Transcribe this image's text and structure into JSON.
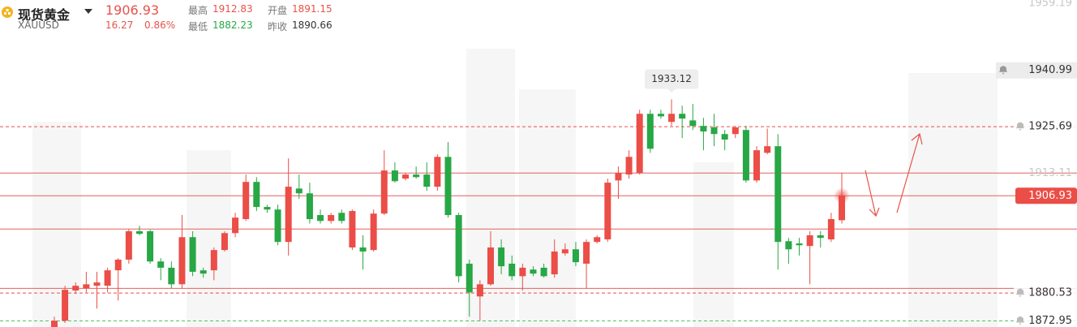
{
  "header": {
    "title": "现货黄金",
    "symbol": "XAUUSD",
    "price": "1906.93",
    "change": "16.27",
    "change_pct": "0.86%",
    "stats": [
      {
        "label": "最高",
        "value": "1912.83"
      },
      {
        "label": "开盘",
        "value": "1891.15"
      },
      {
        "label": "最低",
        "value": "1882.23"
      },
      {
        "label": "昨收",
        "value": "1890.66"
      }
    ]
  },
  "chart_data": {
    "type": "candlestick",
    "up_color": "#eb4d47",
    "down_color": "#27a745",
    "ylim": [
      1871.3,
      1960.1
    ],
    "ohlc": [
      [
        1871.3,
        1874.1,
        1871.3,
        1873.0
      ],
      [
        1873.0,
        1882.5,
        1872.4,
        1881.4
      ],
      [
        1881.2,
        1883.4,
        1880.3,
        1882.5
      ],
      [
        1881.8,
        1886.3,
        1880.7,
        1882.9
      ],
      [
        1882.5,
        1886.3,
        1876.3,
        1883.4
      ],
      [
        1882.5,
        1887.4,
        1880.7,
        1886.7
      ],
      [
        1886.7,
        1890.0,
        1878.5,
        1889.6
      ],
      [
        1889.6,
        1897.9,
        1888.5,
        1897.3
      ],
      [
        1897.3,
        1898.8,
        1896.2,
        1896.6
      ],
      [
        1897.3,
        1897.7,
        1888.5,
        1889.1
      ],
      [
        1889.1,
        1890.0,
        1884.0,
        1887.4
      ],
      [
        1887.4,
        1889.1,
        1881.8,
        1882.9
      ],
      [
        1882.9,
        1901.7,
        1881.8,
        1895.7
      ],
      [
        1895.7,
        1897.3,
        1885.1,
        1886.3
      ],
      [
        1886.7,
        1887.4,
        1884.7,
        1885.8
      ],
      [
        1886.7,
        1892.9,
        1884.0,
        1892.2
      ],
      [
        1892.2,
        1897.3,
        1891.8,
        1896.8
      ],
      [
        1896.8,
        1902.3,
        1895.7,
        1901.0
      ],
      [
        1900.6,
        1912.7,
        1900.1,
        1910.7
      ],
      [
        1910.7,
        1912.0,
        1902.8,
        1903.9
      ],
      [
        1903.9,
        1904.5,
        1902.3,
        1903.2
      ],
      [
        1903.2,
        1904.5,
        1893.5,
        1894.4
      ],
      [
        1894.4,
        1917.1,
        1890.7,
        1909.4
      ],
      [
        1908.9,
        1912.7,
        1906.1,
        1907.6
      ],
      [
        1907.6,
        1910.5,
        1899.4,
        1900.6
      ],
      [
        1901.7,
        1903.2,
        1899.4,
        1900.1
      ],
      [
        1900.1,
        1902.3,
        1899.4,
        1901.7
      ],
      [
        1902.3,
        1903.2,
        1899.4,
        1900.1
      ],
      [
        1892.9,
        1903.2,
        1892.2,
        1902.8
      ],
      [
        1892.9,
        1896.2,
        1886.9,
        1891.8
      ],
      [
        1892.2,
        1903.2,
        1891.8,
        1902.1
      ],
      [
        1902.1,
        1919.3,
        1901.7,
        1913.8
      ],
      [
        1913.8,
        1916.0,
        1910.5,
        1910.9
      ],
      [
        1911.6,
        1913.1,
        1911.1,
        1912.7
      ],
      [
        1912.7,
        1914.9,
        1911.6,
        1912.0
      ],
      [
        1912.7,
        1916.0,
        1908.3,
        1909.4
      ],
      [
        1909.4,
        1918.2,
        1908.3,
        1917.5
      ],
      [
        1917.5,
        1921.5,
        1901.0,
        1901.7
      ],
      [
        1901.7,
        1902.3,
        1883.4,
        1885.1
      ],
      [
        1888.5,
        1889.6,
        1874.1,
        1880.7
      ],
      [
        1879.6,
        1884.0,
        1873.0,
        1882.9
      ],
      [
        1882.9,
        1897.3,
        1882.5,
        1892.9
      ],
      [
        1892.9,
        1895.1,
        1885.6,
        1887.8
      ],
      [
        1888.5,
        1890.7,
        1884.0,
        1885.1
      ],
      [
        1885.1,
        1888.5,
        1881.2,
        1887.4
      ],
      [
        1886.9,
        1887.8,
        1885.1,
        1885.8
      ],
      [
        1887.4,
        1888.5,
        1884.7,
        1885.1
      ],
      [
        1885.6,
        1895.1,
        1884.7,
        1891.8
      ],
      [
        1891.3,
        1894.0,
        1890.7,
        1892.4
      ],
      [
        1892.4,
        1894.4,
        1887.8,
        1888.9
      ],
      [
        1888.5,
        1895.1,
        1881.8,
        1894.4
      ],
      [
        1894.4,
        1896.2,
        1894.0,
        1895.7
      ],
      [
        1895.1,
        1911.6,
        1894.4,
        1910.5
      ],
      [
        1911.1,
        1914.9,
        1906.1,
        1913.1
      ],
      [
        1912.7,
        1919.3,
        1911.6,
        1917.5
      ],
      [
        1913.1,
        1930.3,
        1912.7,
        1929.2
      ],
      [
        1929.2,
        1930.3,
        1918.6,
        1919.7
      ],
      [
        1929.2,
        1930.3,
        1927.9,
        1928.5
      ],
      [
        1927.0,
        1933.12,
        1925.9,
        1929.2
      ],
      [
        1929.2,
        1931.4,
        1922.6,
        1927.9
      ],
      [
        1927.4,
        1931.9,
        1924.8,
        1925.9
      ],
      [
        1925.9,
        1928.1,
        1919.3,
        1924.4
      ],
      [
        1925.5,
        1929.2,
        1920.4,
        1923.7
      ],
      [
        1923.7,
        1924.8,
        1919.3,
        1922.2
      ],
      [
        1923.7,
        1925.9,
        1922.6,
        1925.5
      ],
      [
        1924.8,
        1925.9,
        1910.5,
        1911.1
      ],
      [
        1911.1,
        1920.4,
        1910.5,
        1919.3
      ],
      [
        1918.6,
        1925.2,
        1918.2,
        1920.4
      ],
      [
        1920.4,
        1923.7,
        1886.9,
        1894.4
      ],
      [
        1894.6,
        1895.5,
        1888.5,
        1892.4
      ],
      [
        1894.0,
        1895.5,
        1890.7,
        1893.5
      ],
      [
        1893.3,
        1897.3,
        1882.9,
        1896.2
      ],
      [
        1896.2,
        1897.3,
        1892.9,
        1895.5
      ],
      [
        1895.1,
        1902.3,
        1894.4,
        1900.6
      ],
      [
        1900.3,
        1913.1,
        1899.4,
        1906.93
      ]
    ],
    "price_lines": [
      {
        "value": 1959.19,
        "tag": "faint"
      },
      {
        "value": 1940.99,
        "tag": "alert-active"
      },
      {
        "value": 1925.69,
        "tag": "alert",
        "line": "dashed",
        "line_color": "#eb4d47"
      },
      {
        "value": 1913.11,
        "tag": "faint",
        "line": "solid",
        "line_color": "#e0625c"
      },
      {
        "value": 1906.93,
        "tag": "current",
        "line": "solid",
        "line_color": "#e0625c"
      },
      {
        "value": 1897.9,
        "line": "solid",
        "line_color": "#e0625c"
      },
      {
        "value": 1881.8,
        "line": "solid",
        "line_color": "#e0625c"
      },
      {
        "value": 1880.53,
        "tag": "alert",
        "line": "dashed",
        "line_color": "#eb4d47"
      },
      {
        "value": 1872.95,
        "tag": "alert",
        "line": "dashed",
        "line_color": "#4cc36a"
      }
    ]
  }
}
